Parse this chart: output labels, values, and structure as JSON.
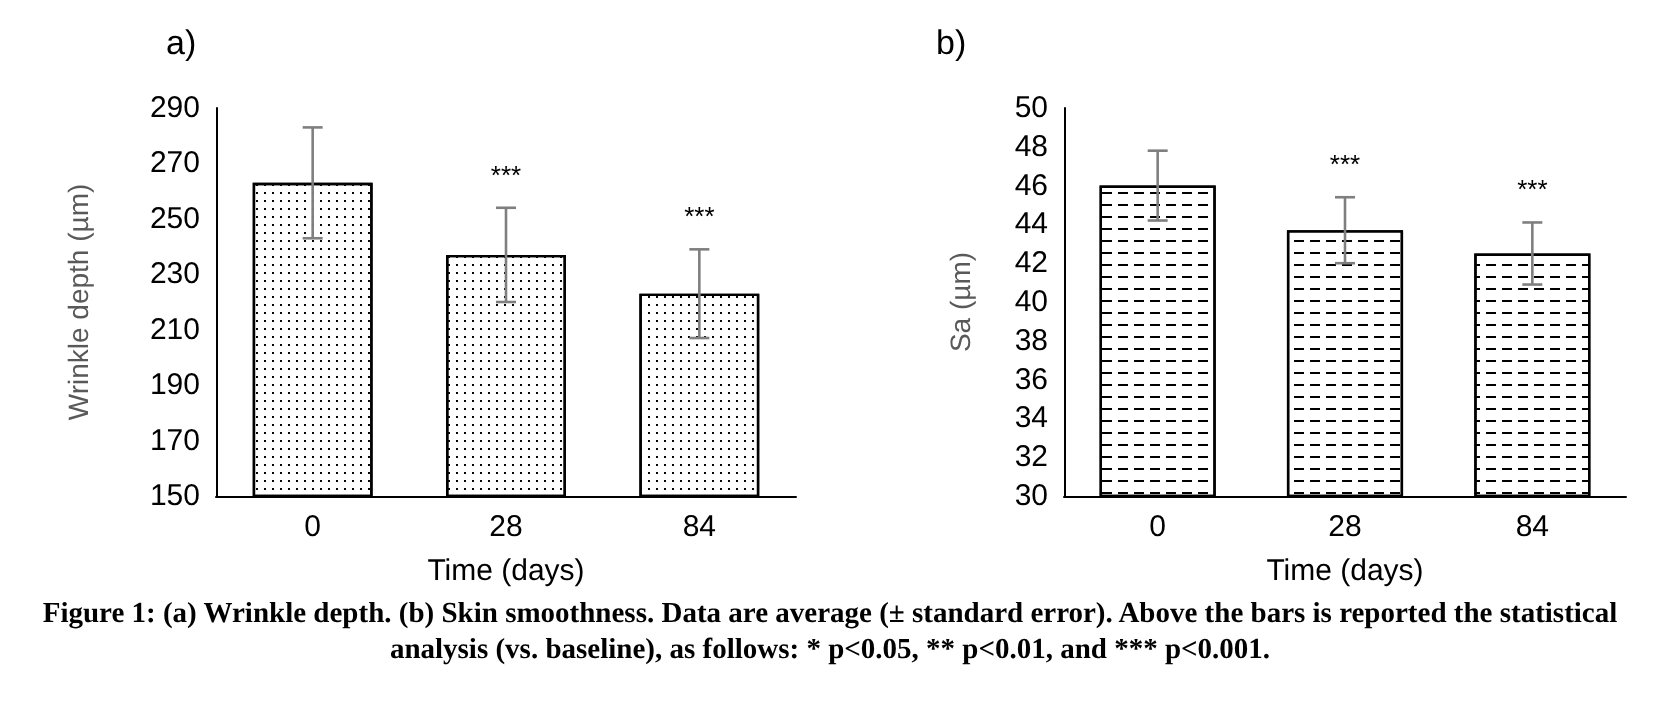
{
  "chart_data": [
    {
      "type": "bar",
      "title": "a)",
      "xlabel": "Time (days)",
      "ylabel": "Wrinkle depth (µm)",
      "categories": [
        "0",
        "28",
        "84"
      ],
      "values": [
        263,
        237,
        223
      ],
      "errors": [
        20,
        17,
        16
      ],
      "color": "#ffffff",
      "ylim": [
        150,
        290
      ],
      "yticks": [
        150,
        170,
        190,
        210,
        230,
        250,
        270,
        290
      ],
      "grid": false,
      "value_labels": [
        null,
        "***",
        "***"
      ],
      "annotations": [
        "Figure 1: (a) Wrinkle depth. (b) Skin smoothness. Data are average (± standard error). Above the bars is reported the statistical analysis (vs. baseline), as follows: * p<0.05, ** p<0.01, and *** p<0.001."
      ]
    },
    {
      "type": "bar",
      "title": "b)",
      "xlabel": "Time (days)",
      "ylabel": "Sa (µm)",
      "categories": [
        "0",
        "28",
        "84"
      ],
      "values": [
        46.0,
        43.7,
        42.5
      ],
      "errors": [
        1.8,
        1.7,
        1.6
      ],
      "color": "#ffffff",
      "ylim": [
        30,
        50
      ],
      "yticks": [
        30,
        32,
        34,
        36,
        38,
        40,
        42,
        44,
        46,
        48,
        50
      ],
      "grid": false,
      "value_labels": [
        null,
        "***",
        "***"
      ]
    }
  ]
}
